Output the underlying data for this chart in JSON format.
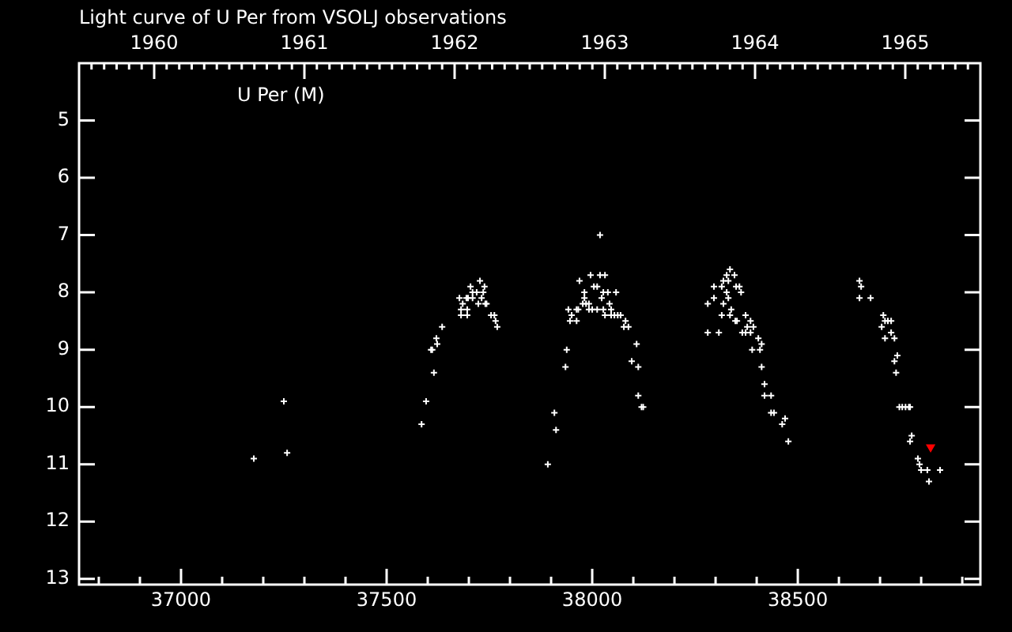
{
  "chart_data": {
    "type": "scatter",
    "title": "Light curve of U Per from VSOLJ observations",
    "marker": "cross",
    "xlim": [
      36752,
      38944
    ],
    "xticks": [
      {
        "value": 36800,
        "label": null
      },
      {
        "value": 36900,
        "label": null
      },
      37000,
      {
        "value": 37100,
        "label": null
      },
      {
        "value": 37200,
        "label": null
      },
      {
        "value": 37300,
        "label": null
      },
      {
        "value": 37400,
        "label": null
      },
      37500,
      {
        "value": 37600,
        "label": null
      },
      {
        "value": 37700,
        "label": null
      },
      {
        "value": 37800,
        "label": null
      },
      {
        "value": 37900,
        "label": null
      },
      38000,
      {
        "value": 38100,
        "label": null
      },
      {
        "value": 38200,
        "label": null
      },
      {
        "value": 38300,
        "label": null
      },
      {
        "value": 38400,
        "label": null
      },
      38500,
      {
        "value": 38600,
        "label": null
      },
      {
        "value": 38700,
        "label": null
      },
      {
        "value": 38800,
        "label": null
      },
      {
        "value": 38900,
        "label": null
      }
    ],
    "x2lim": [
      1959.5,
      1965.5
    ],
    "x2ticks": [
      {
        "value": 1959.583,
        "label": null
      },
      {
        "value": 1959.667,
        "label": null
      },
      {
        "value": 1959.75,
        "label": null
      },
      {
        "value": 1959.833,
        "label": null
      },
      {
        "value": 1959.917,
        "label": null
      },
      1960,
      {
        "value": 1960.083,
        "label": null
      },
      {
        "value": 1960.167,
        "label": null
      },
      {
        "value": 1960.25,
        "label": null
      },
      {
        "value": 1960.333,
        "label": null
      },
      {
        "value": 1960.417,
        "label": null
      },
      {
        "value": 1960.5,
        "label": null
      },
      {
        "value": 1960.583,
        "label": null
      },
      {
        "value": 1960.667,
        "label": null
      },
      {
        "value": 1960.75,
        "label": null
      },
      {
        "value": 1960.833,
        "label": null
      },
      {
        "value": 1960.917,
        "label": null
      },
      1961,
      {
        "value": 1961.083,
        "label": null
      },
      {
        "value": 1961.167,
        "label": null
      },
      {
        "value": 1961.25,
        "label": null
      },
      {
        "value": 1961.333,
        "label": null
      },
      {
        "value": 1961.417,
        "label": null
      },
      {
        "value": 1961.5,
        "label": null
      },
      {
        "value": 1961.583,
        "label": null
      },
      {
        "value": 1961.667,
        "label": null
      },
      {
        "value": 1961.75,
        "label": null
      },
      {
        "value": 1961.833,
        "label": null
      },
      {
        "value": 1961.917,
        "label": null
      },
      1962,
      {
        "value": 1962.083,
        "label": null
      },
      {
        "value": 1962.167,
        "label": null
      },
      {
        "value": 1962.25,
        "label": null
      },
      {
        "value": 1962.333,
        "label": null
      },
      {
        "value": 1962.417,
        "label": null
      },
      {
        "value": 1962.5,
        "label": null
      },
      {
        "value": 1962.583,
        "label": null
      },
      {
        "value": 1962.667,
        "label": null
      },
      {
        "value": 1962.75,
        "label": null
      },
      {
        "value": 1962.833,
        "label": null
      },
      {
        "value": 1962.917,
        "label": null
      },
      1963,
      {
        "value": 1963.083,
        "label": null
      },
      {
        "value": 1963.167,
        "label": null
      },
      {
        "value": 1963.25,
        "label": null
      },
      {
        "value": 1963.333,
        "label": null
      },
      {
        "value": 1963.417,
        "label": null
      },
      {
        "value": 1963.5,
        "label": null
      },
      {
        "value": 1963.583,
        "label": null
      },
      {
        "value": 1963.667,
        "label": null
      },
      {
        "value": 1963.75,
        "label": null
      },
      {
        "value": 1963.833,
        "label": null
      },
      {
        "value": 1963.917,
        "label": null
      },
      1964,
      {
        "value": 1964.083,
        "label": null
      },
      {
        "value": 1964.167,
        "label": null
      },
      {
        "value": 1964.25,
        "label": null
      },
      {
        "value": 1964.333,
        "label": null
      },
      {
        "value": 1964.417,
        "label": null
      },
      {
        "value": 1964.5,
        "label": null
      },
      {
        "value": 1964.583,
        "label": null
      },
      {
        "value": 1964.667,
        "label": null
      },
      {
        "value": 1964.75,
        "label": null
      },
      {
        "value": 1964.833,
        "label": null
      },
      {
        "value": 1964.917,
        "label": null
      },
      1965,
      {
        "value": 1965.083,
        "label": null
      },
      {
        "value": 1965.167,
        "label": null
      },
      {
        "value": 1965.25,
        "label": null
      },
      {
        "value": 1965.333,
        "label": null
      },
      {
        "value": 1965.417,
        "label": null
      }
    ],
    "ylim": [
      13.1,
      4.0
    ],
    "yticks": [
      5,
      6,
      7,
      8,
      9,
      10,
      11,
      12,
      13
    ],
    "series": [
      {
        "name": "U Per (M)",
        "color": "#ffffff",
        "x": [
          37177,
          37250,
          37258,
          37585,
          37596,
          37608,
          37611,
          37615,
          37621,
          37623,
          37635,
          37677,
          37681,
          37681,
          37685,
          37694,
          37698,
          37696,
          37696,
          37704,
          37709,
          37719,
          37709,
          37727,
          37731,
          37735,
          37738,
          37723,
          37740,
          37743,
          37754,
          37762,
          37765,
          37769,
          37892,
          37908,
          37912,
          37935,
          37938,
          37942,
          37946,
          37950,
          37962,
          37966,
          37962,
          37969,
          37977,
          37981,
          37981,
          37985,
          37992,
          37992,
          37996,
          38000,
          38004,
          38012,
          38012,
          38019,
          38019,
          38031,
          38023,
          38027,
          38038,
          38027,
          38031,
          38042,
          38046,
          38046,
          38054,
          38058,
          38062,
          38069,
          38081,
          38077,
          38088,
          38096,
          38108,
          38112,
          38112,
          38120,
          38124,
          38281,
          38281,
          38296,
          38296,
          38308,
          38315,
          38315,
          38319,
          38319,
          38327,
          38327,
          38331,
          38331,
          38335,
          38335,
          38338,
          38346,
          38348,
          38352,
          38350,
          38358,
          38362,
          38365,
          38373,
          38373,
          38377,
          38385,
          38385,
          38389,
          38392,
          38404,
          38408,
          38412,
          38412,
          38419,
          38419,
          38435,
          38435,
          38442,
          38462,
          38469,
          38477,
          38650,
          38654,
          38650,
          38677,
          38704,
          38708,
          38712,
          38719,
          38727,
          38712,
          38727,
          38735,
          38742,
          38735,
          38739,
          38747,
          38754,
          38762,
          38770,
          38773,
          38777,
          38773,
          38792,
          38796,
          38800,
          38815,
          38846,
          38819
        ],
        "values": [
          10.9,
          9.9,
          10.8,
          10.3,
          9.9,
          9.0,
          9.0,
          9.4,
          8.8,
          8.9,
          8.6,
          8.1,
          8.3,
          8.4,
          8.2,
          8.1,
          8.1,
          8.3,
          8.4,
          7.9,
          8.0,
          8.0,
          8.1,
          7.8,
          8.1,
          8.0,
          7.9,
          8.2,
          8.2,
          8.2,
          8.4,
          8.4,
          8.5,
          8.6,
          11.0,
          10.1,
          10.4,
          9.3,
          9.0,
          8.3,
          8.5,
          8.4,
          8.3,
          8.3,
          8.5,
          7.8,
          8.2,
          8.0,
          8.1,
          8.2,
          8.2,
          8.3,
          7.7,
          8.3,
          7.9,
          7.9,
          8.3,
          7.0,
          7.7,
          7.7,
          8.1,
          8.0,
          8.0,
          8.3,
          8.4,
          8.2,
          8.3,
          8.4,
          8.4,
          8.0,
          8.4,
          8.4,
          8.5,
          8.6,
          8.6,
          9.2,
          8.9,
          9.3,
          9.8,
          10.0,
          10.0,
          8.2,
          8.7,
          7.9,
          8.1,
          8.7,
          7.9,
          8.4,
          7.8,
          8.2,
          7.7,
          8.0,
          7.8,
          8.1,
          7.6,
          8.4,
          8.3,
          7.7,
          8.5,
          8.5,
          7.9,
          7.9,
          8.0,
          8.7,
          8.4,
          8.7,
          8.6,
          8.5,
          8.7,
          9.0,
          8.6,
          8.8,
          9.0,
          8.9,
          9.3,
          9.6,
          9.8,
          9.8,
          10.1,
          10.1,
          10.3,
          10.2,
          10.6,
          7.8,
          7.9,
          8.1,
          8.1,
          8.6,
          8.4,
          8.5,
          8.5,
          8.5,
          8.8,
          8.7,
          8.8,
          9.1,
          9.2,
          9.4,
          10.0,
          10.0,
          10.0,
          10.0,
          10.0,
          10.5,
          10.6,
          10.9,
          11.0,
          11.1,
          11.1,
          11.1,
          11.3
        ]
      },
      {
        "color": "#ff0000",
        "marker": "triangle",
        "x": [
          38823
        ],
        "values": [
          10.7
        ]
      }
    ]
  }
}
